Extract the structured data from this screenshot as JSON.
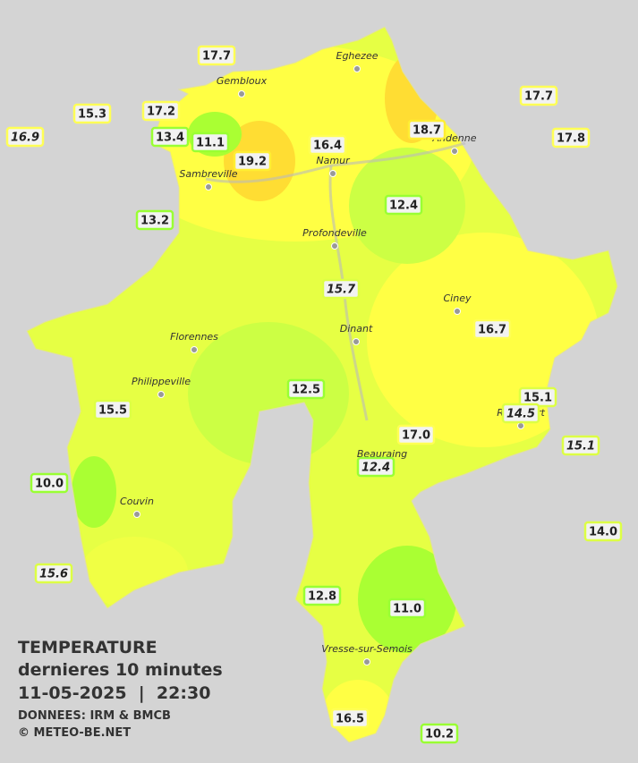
{
  "map": {
    "title": "TEMPERATURE",
    "subtitle": "dernieres 10 minutes",
    "datetime": "11-05-2025  |  22:30",
    "source": "DONNEES: IRM & BMCB",
    "copyright": "© METEO-BE.NET",
    "towns": [
      "Eghezee",
      "Gembloux",
      "Andenne",
      "Namur",
      "Sambreville",
      "Profondeville",
      "Ciney",
      "Dinant",
      "Florennes",
      "Philippeville",
      "Rochefort",
      "Beauraing",
      "Couvin",
      "Vresse-sur-Semois"
    ],
    "stations": [
      {
        "label": "17.7",
        "color": "#ffff55",
        "italic": false
      },
      {
        "label": "15.3",
        "color": "#ffff55",
        "italic": false
      },
      {
        "label": "17.2",
        "color": "#ffff55",
        "italic": false
      },
      {
        "label": "16.9",
        "color": "#ffff55",
        "italic": true
      },
      {
        "label": "13.4",
        "color": "#99ff33",
        "italic": false
      },
      {
        "label": "11.1",
        "color": "#99ff33",
        "italic": false
      },
      {
        "label": "19.2",
        "color": "#ffee33",
        "italic": false
      },
      {
        "label": "16.4",
        "color": "#ffff55",
        "italic": false
      },
      {
        "label": "18.7",
        "color": "#ffee33",
        "italic": false
      },
      {
        "label": "17.7",
        "color": "#ffff55",
        "italic": false
      },
      {
        "label": "17.8",
        "color": "#ffff55",
        "italic": false
      },
      {
        "label": "13.2",
        "color": "#99ff33",
        "italic": false
      },
      {
        "label": "12.4",
        "color": "#99ff33",
        "italic": false
      },
      {
        "label": "15.7",
        "color": "#ddff44",
        "italic": true
      },
      {
        "label": "16.7",
        "color": "#ffff55",
        "italic": false
      },
      {
        "label": "12.5",
        "color": "#99ff33",
        "italic": false
      },
      {
        "label": "15.5",
        "color": "#ddff44",
        "italic": false
      },
      {
        "label": "15.1",
        "color": "#ddff44",
        "italic": false
      },
      {
        "label": "14.5",
        "color": "#ddff44",
        "italic": true
      },
      {
        "label": "17.0",
        "color": "#ffff55",
        "italic": false
      },
      {
        "label": "15.1",
        "color": "#ddff44",
        "italic": true
      },
      {
        "label": "12.4",
        "color": "#99ff33",
        "italic": true
      },
      {
        "label": "10.0",
        "color": "#99ff33",
        "italic": false
      },
      {
        "label": "14.0",
        "color": "#ddff44",
        "italic": false
      },
      {
        "label": "15.6",
        "color": "#ddff44",
        "italic": true
      },
      {
        "label": "12.8",
        "color": "#99ff33",
        "italic": false
      },
      {
        "label": "11.0",
        "color": "#99ff33",
        "italic": false
      },
      {
        "label": "16.5",
        "color": "#ffff55",
        "italic": false
      },
      {
        "label": "10.2",
        "color": "#99ff33",
        "italic": false
      }
    ]
  }
}
